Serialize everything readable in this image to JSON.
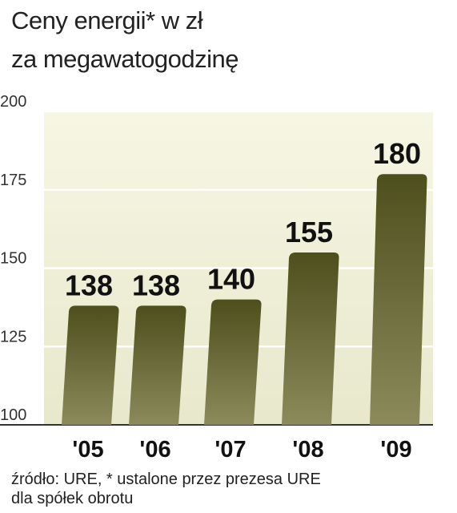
{
  "title_line1": "Ceny energii* w zł",
  "title_line2": "za megawatogodzinę",
  "source_line1": "źródło: URE, * ustalone przez prezesa URE",
  "source_line2": "dla spółek obrotu",
  "colors": {
    "bar_top": "#4d4f1c",
    "bar_bottom": "#8c8a5c",
    "highlight_label": "#c8102e",
    "background_top": "#f6f6e4",
    "background_bottom": "#e8e8cc",
    "gridline": "#ffffff"
  },
  "chart_data": {
    "type": "bar",
    "categories": [
      "'05",
      "'06",
      "'07",
      "'08",
      "'09"
    ],
    "values": [
      138,
      138,
      140,
      155,
      180
    ],
    "value_labels": [
      "138",
      "138",
      "140",
      "155",
      "180"
    ],
    "highlight_index": 4,
    "ylim": [
      100,
      200
    ],
    "yticks": [
      100,
      125,
      150,
      175,
      200
    ],
    "grid": true
  }
}
